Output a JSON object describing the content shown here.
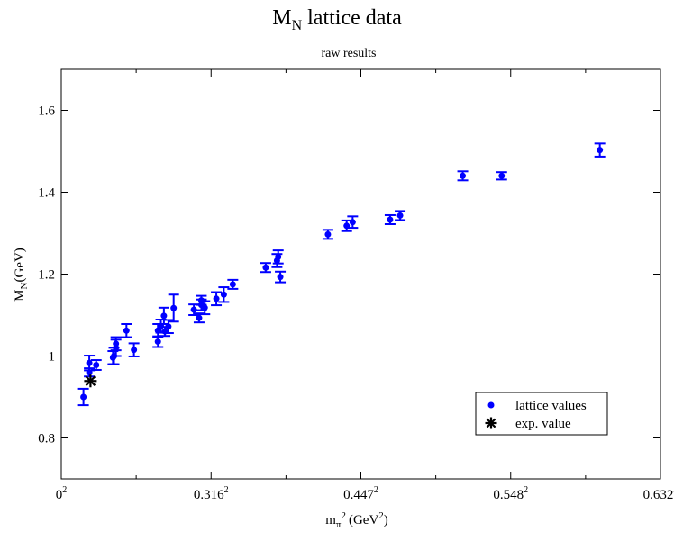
{
  "chart_data": {
    "type": "scatter",
    "title_main": "M",
    "title_sub_script": "N",
    "title_rest": " lattice data",
    "subtitle": "raw results",
    "ylabel_main": "M",
    "ylabel_sub": "N",
    "ylabel_rest": "(GeV)",
    "xlabel_main": "m",
    "xlabel_sub": "π",
    "xlabel_sup": "2",
    "xlabel_rest": "(GeV",
    "xlabel_unit_sup": "2",
    "xlabel_close": ")",
    "xlim": [
      0,
      0.4
    ],
    "ylim": [
      0.7,
      1.7
    ],
    "xticks": [
      {
        "value": 0,
        "label": "0",
        "sup": "2"
      },
      {
        "value": 0.1,
        "label": "0.316",
        "sup": "2"
      },
      {
        "value": 0.2,
        "label": "0.447",
        "sup": "2"
      },
      {
        "value": 0.3,
        "label": "0.548",
        "sup": "2"
      },
      {
        "value": 0.4,
        "label": "0.632",
        "sup": "2"
      }
    ],
    "yticks": [
      {
        "value": 0.8,
        "label": "0.8"
      },
      {
        "value": 1.0,
        "label": "1"
      },
      {
        "value": 1.2,
        "label": "1.2"
      },
      {
        "value": 1.4,
        "label": "1.4"
      },
      {
        "value": 1.6,
        "label": "1.6"
      }
    ],
    "grid": false,
    "legend_position": "bottom-right",
    "series": [
      {
        "name": "lattice values",
        "color": "#0000ff",
        "marker": "circle",
        "points": [
          {
            "x": 0.0148,
            "y": 0.9,
            "err": 0.02
          },
          {
            "x": 0.0187,
            "y": 0.983,
            "err": 0.018
          },
          {
            "x": 0.0187,
            "y": 0.96,
            "err": 0.01
          },
          {
            "x": 0.0233,
            "y": 0.978,
            "err": 0.012
          },
          {
            "x": 0.0345,
            "y": 0.996,
            "err": 0.016
          },
          {
            "x": 0.0352,
            "y": 1.0,
            "err": 0.02
          },
          {
            "x": 0.0365,
            "y": 1.02,
            "err": 0.02
          },
          {
            "x": 0.0365,
            "y": 1.03,
            "err": 0.016
          },
          {
            "x": 0.0435,
            "y": 1.062,
            "err": 0.016
          },
          {
            "x": 0.0485,
            "y": 1.015,
            "err": 0.016
          },
          {
            "x": 0.0645,
            "y": 1.035,
            "err": 0.013
          },
          {
            "x": 0.0645,
            "y": 1.062,
            "err": 0.016
          },
          {
            "x": 0.0665,
            "y": 1.073,
            "err": 0.016
          },
          {
            "x": 0.0685,
            "y": 1.098,
            "err": 0.02
          },
          {
            "x": 0.0692,
            "y": 1.06,
            "err": 0.011
          },
          {
            "x": 0.0715,
            "y": 1.072,
            "err": 0.016
          },
          {
            "x": 0.075,
            "y": 1.117,
            "err": 0.033
          },
          {
            "x": 0.0885,
            "y": 1.113,
            "err": 0.013
          },
          {
            "x": 0.092,
            "y": 1.093,
            "err": 0.011
          },
          {
            "x": 0.0935,
            "y": 1.125,
            "err": 0.013
          },
          {
            "x": 0.0935,
            "y": 1.136,
            "err": 0.011
          },
          {
            "x": 0.0958,
            "y": 1.118,
            "err": 0.016
          },
          {
            "x": 0.1035,
            "y": 1.14,
            "err": 0.016
          },
          {
            "x": 0.1085,
            "y": 1.15,
            "err": 0.018
          },
          {
            "x": 0.1145,
            "y": 1.175,
            "err": 0.011
          },
          {
            "x": 0.1365,
            "y": 1.216,
            "err": 0.011
          },
          {
            "x": 0.144,
            "y": 1.233,
            "err": 0.016
          },
          {
            "x": 0.1448,
            "y": 1.242,
            "err": 0.016
          },
          {
            "x": 0.1462,
            "y": 1.193,
            "err": 0.013
          },
          {
            "x": 0.178,
            "y": 1.297,
            "err": 0.011
          },
          {
            "x": 0.1905,
            "y": 1.318,
            "err": 0.013
          },
          {
            "x": 0.1945,
            "y": 1.327,
            "err": 0.014
          },
          {
            "x": 0.2195,
            "y": 1.333,
            "err": 0.011
          },
          {
            "x": 0.2262,
            "y": 1.343,
            "err": 0.011
          },
          {
            "x": 0.268,
            "y": 1.44,
            "err": 0.011
          },
          {
            "x": 0.294,
            "y": 1.44,
            "err": 0.009
          },
          {
            "x": 0.3595,
            "y": 1.503,
            "err": 0.016
          }
        ]
      },
      {
        "name": "exp. value",
        "color": "#000000",
        "marker": "asterisk",
        "points": [
          {
            "x": 0.0195,
            "y": 0.939,
            "err": 0
          }
        ]
      }
    ]
  }
}
